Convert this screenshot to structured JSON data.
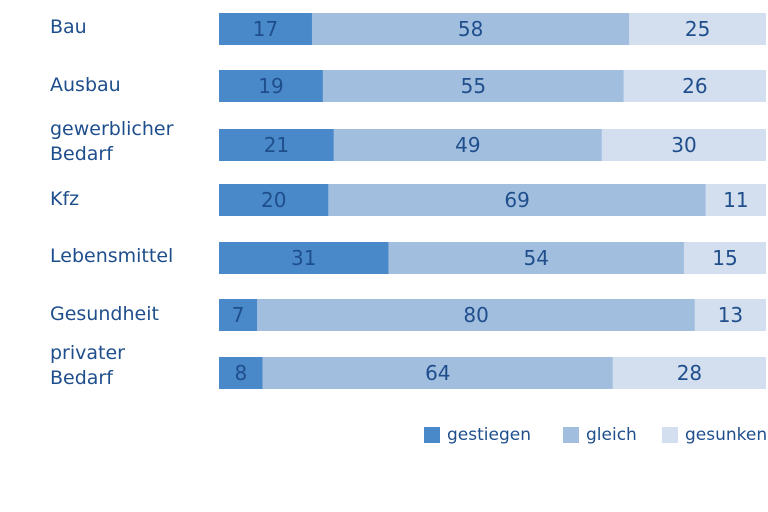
{
  "chart_data": {
    "type": "bar",
    "orientation": "horizontal",
    "stacked": true,
    "title": "",
    "xlabel": "",
    "ylabel": "",
    "xlim": [
      0,
      100
    ],
    "grid": false,
    "legend_position": "bottom-right",
    "categories": [
      "Bau",
      "Ausbau",
      "gewerblicher\nBedarf",
      "Kfz",
      "Lebensmittel",
      "Gesundheit",
      "privater\nBedarf"
    ],
    "series": [
      {
        "name": "gestiegen",
        "color": "#4a89c9",
        "values": [
          17,
          19,
          21,
          20,
          31,
          7,
          8
        ]
      },
      {
        "name": "gleich",
        "color": "#a1bedf",
        "values": [
          58,
          55,
          49,
          69,
          54,
          80,
          64
        ]
      },
      {
        "name": "gesunken",
        "color": "#d3deee",
        "values": [
          25,
          26,
          30,
          11,
          15,
          13,
          28
        ]
      }
    ]
  },
  "colors": {
    "label_text": "#1f4e8c",
    "value_text": "#1f4e8c"
  }
}
